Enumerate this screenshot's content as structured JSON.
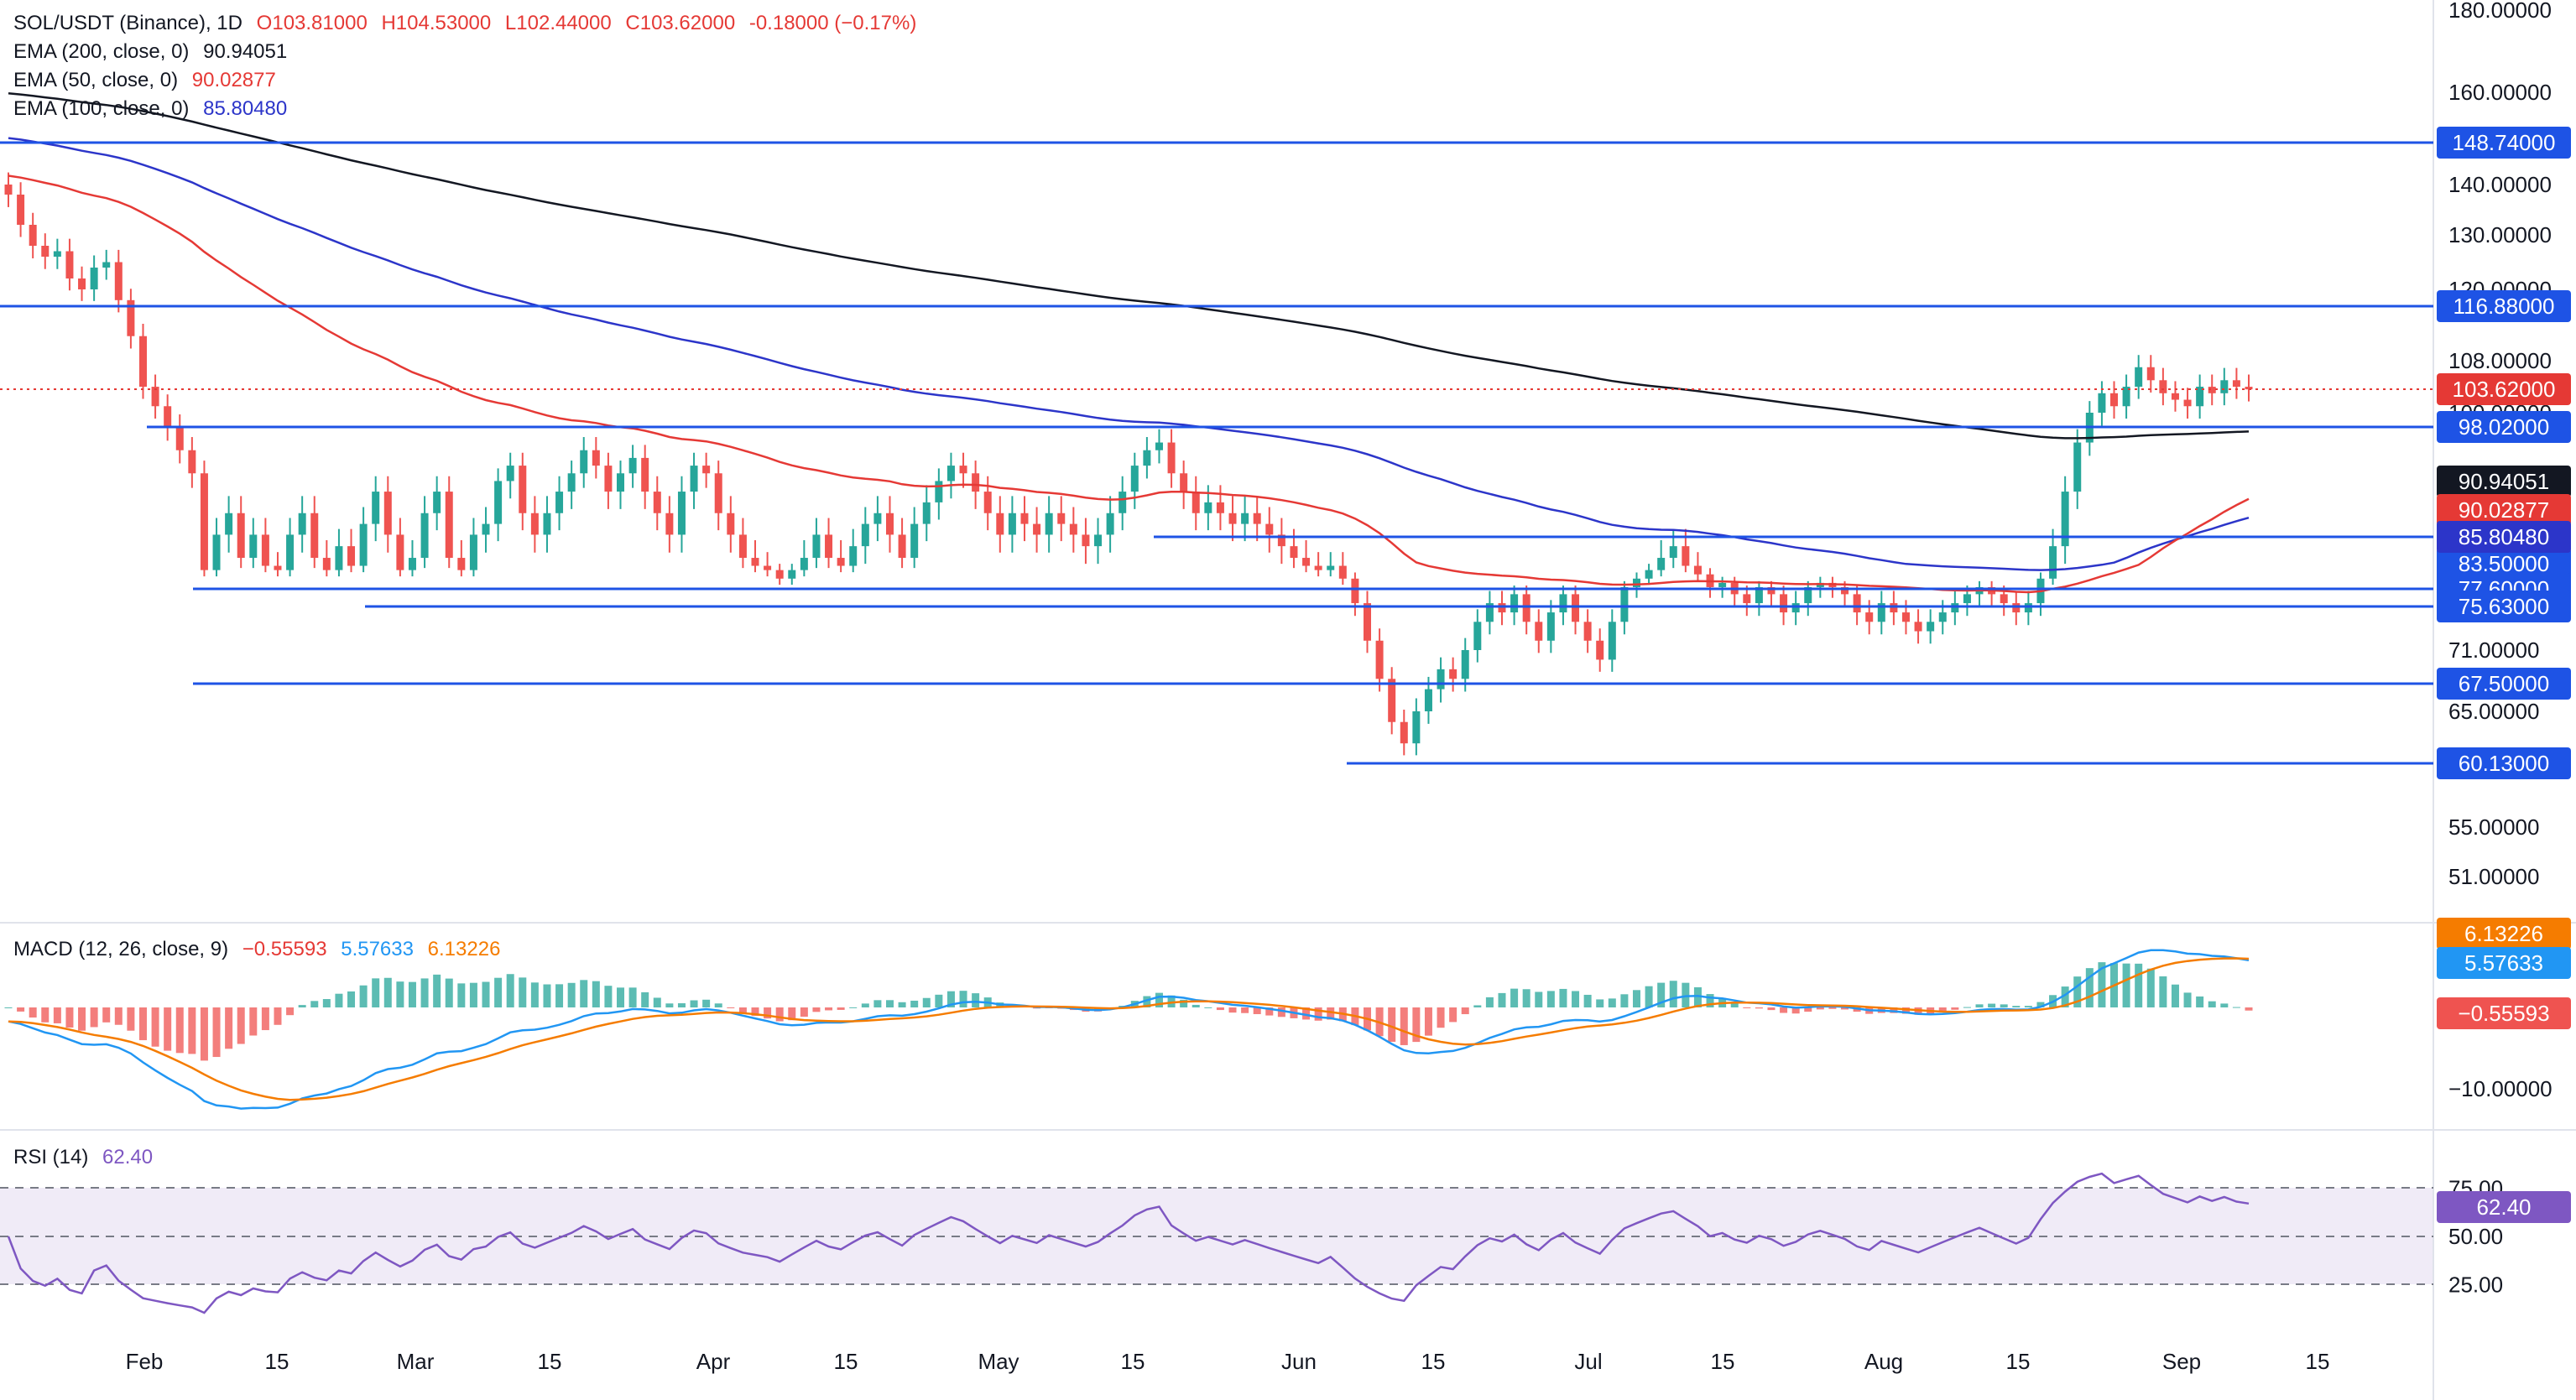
{
  "header": {
    "symbol": "SOL/USDT (Binance), 1D",
    "open": "O103.81000",
    "high": "H104.53000",
    "low": "L102.44000",
    "close": "C103.62000",
    "change": "-0.18000 (−0.17%)"
  },
  "indicators": {
    "ema200": {
      "label": "EMA (200, close, 0)",
      "value": "90.94051",
      "color": "#131722"
    },
    "ema50": {
      "label": "EMA (50, close, 0)",
      "value": "90.02877",
      "color": "#e53935"
    },
    "ema100": {
      "label": "EMA (100, close, 0)",
      "value": "85.80480",
      "color": "#2c35c9"
    },
    "macd": {
      "label": "MACD (12, 26, close, 9)",
      "hist": "−0.55593",
      "macd": "5.57633",
      "signal": "6.13226"
    },
    "rsi": {
      "label": "RSI (14)",
      "value": "62.40"
    }
  },
  "chart_data": {
    "type": "candlestick",
    "symbol": "SOL/USDT",
    "timeframe": "1D",
    "x_ticks": [
      "Feb",
      "15",
      "Mar",
      "15",
      "Apr",
      "15",
      "May",
      "15",
      "Jun",
      "15",
      "Jul",
      "15",
      "Aug",
      "15",
      "Sep",
      "15"
    ],
    "y_ticks": [
      "180.00000",
      "160.00000",
      "140.00000",
      "130.00000",
      "120.00000",
      "108.00000",
      "100.00000",
      "71.00000",
      "65.00000",
      "55.00000",
      "51.00000"
    ],
    "last_price": "103.62000",
    "horizontal_levels": [
      "148.74000",
      "116.88000",
      "98.02000",
      "85.80480",
      "83.50000",
      "77.60000",
      "75.63000",
      "67.50000",
      "60.13000"
    ],
    "ema200_last": "90.94051",
    "ema50_last": "90.02877",
    "ema100_last": "85.80480",
    "closes_approx": [
      138,
      132,
      128,
      126,
      127,
      122,
      120,
      124,
      125,
      118,
      112,
      104,
      101,
      98,
      95,
      92,
      82,
      86,
      88,
      84,
      86,
      83,
      82,
      86,
      88,
      84,
      82,
      85,
      83,
      87,
      90,
      86,
      82,
      84,
      88,
      90,
      84,
      82,
      86,
      87,
      91,
      93,
      88,
      86,
      88,
      90,
      92,
      95,
      93,
      90,
      92,
      94,
      90,
      88,
      86,
      90,
      93,
      92,
      88,
      86,
      84,
      83,
      82,
      80,
      82,
      84,
      86,
      84,
      83,
      85,
      87,
      88,
      86,
      84,
      87,
      89,
      91,
      93,
      92,
      90,
      88,
      86,
      88,
      87,
      86,
      88,
      87,
      86,
      85,
      86,
      88,
      90,
      93,
      95,
      96,
      92,
      90,
      88,
      89,
      88,
      87,
      88,
      87,
      86,
      85,
      84,
      83,
      82,
      83,
      80,
      76,
      72,
      68,
      64,
      62,
      65,
      67,
      69,
      68,
      71,
      74,
      76,
      75,
      77,
      74,
      72,
      75,
      77,
      74,
      72,
      70,
      74,
      78,
      80,
      82,
      84,
      85,
      83,
      81,
      78,
      79,
      77,
      76,
      78,
      77,
      75,
      76,
      78,
      79,
      78,
      77,
      75,
      74,
      76,
      75,
      74,
      73,
      74,
      75,
      76,
      77,
      78,
      77,
      76,
      75,
      76,
      80,
      85,
      90,
      96,
      100,
      103,
      101,
      104,
      107,
      105,
      103,
      102,
      101,
      104,
      103,
      105,
      104,
      103.6
    ],
    "macd": {
      "y_ticks": [
        "6.13226",
        "5.57633",
        "−0.55593",
        "−10.00000"
      ]
    },
    "rsi": {
      "y_ticks": [
        "75.00",
        "50.00",
        "25.00"
      ],
      "value": "62.40"
    }
  }
}
